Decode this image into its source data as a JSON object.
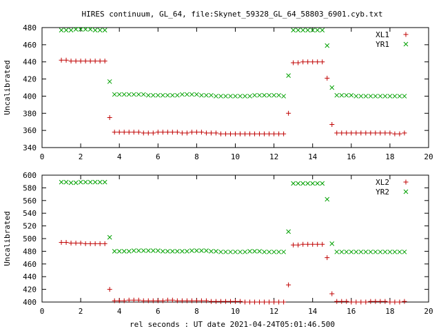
{
  "title": "HIRES continuum, GL_64, file:Skynet_59328_GL_64_58803_6901.cyb.txt",
  "xlabel": "rel seconds : UT date 2021-04-24T05:01:46.500",
  "colors": {
    "xl": "#c00000",
    "yr": "#00a000"
  },
  "chart_data": [
    {
      "type": "scatter",
      "ylabel": "Uncalibrated",
      "xlim": [
        0,
        20
      ],
      "ylim": [
        340,
        480
      ],
      "xticks": [
        "0",
        "2",
        "4",
        "6",
        "8",
        "10",
        "12",
        "14",
        "16",
        "18",
        "20"
      ],
      "yticks": [
        "340",
        "360",
        "380",
        "400",
        "420",
        "440",
        "460",
        "480"
      ],
      "legend": "top-right",
      "series": [
        {
          "name": "XL1",
          "marker": "plus",
          "x": [
            1.0,
            1.25,
            1.5,
            1.75,
            2.0,
            2.25,
            2.5,
            2.75,
            3.0,
            3.25,
            3.5,
            3.75,
            4.0,
            4.25,
            4.5,
            4.75,
            5.0,
            5.25,
            5.5,
            5.75,
            6.0,
            6.25,
            6.5,
            6.75,
            7.0,
            7.25,
            7.5,
            7.75,
            8.0,
            8.25,
            8.5,
            8.75,
            9.0,
            9.25,
            9.5,
            9.75,
            10.0,
            10.25,
            10.5,
            10.75,
            11.0,
            11.25,
            11.5,
            11.75,
            12.0,
            12.25,
            12.5,
            12.75,
            13.0,
            13.25,
            13.5,
            13.75,
            14.0,
            14.25,
            14.5,
            14.75,
            15.0,
            15.25,
            15.5,
            15.75,
            16.0,
            16.25,
            16.5,
            16.75,
            17.0,
            17.25,
            17.5,
            17.75,
            18.0,
            18.25,
            18.5,
            18.75
          ],
          "y": [
            442,
            442,
            441,
            441,
            441,
            441,
            441,
            441,
            441,
            441,
            375,
            358,
            358,
            358,
            358,
            358,
            358,
            357,
            357,
            357,
            358,
            358,
            358,
            358,
            358,
            357,
            357,
            358,
            358,
            358,
            357,
            357,
            357,
            356,
            356,
            356,
            356,
            356,
            356,
            356,
            356,
            356,
            356,
            356,
            356,
            356,
            356,
            380,
            439,
            439,
            440,
            440,
            440,
            440,
            440,
            421,
            367,
            357,
            357,
            357,
            357,
            357,
            357,
            357,
            357,
            357,
            357,
            357,
            357,
            356,
            356,
            357
          ]
        },
        {
          "name": "YR1",
          "marker": "cross",
          "x": [
            1.0,
            1.25,
            1.5,
            1.75,
            2.0,
            2.25,
            2.5,
            2.75,
            3.0,
            3.25,
            3.5,
            3.75,
            4.0,
            4.25,
            4.5,
            4.75,
            5.0,
            5.25,
            5.5,
            5.75,
            6.0,
            6.25,
            6.5,
            6.75,
            7.0,
            7.25,
            7.5,
            7.75,
            8.0,
            8.25,
            8.5,
            8.75,
            9.0,
            9.25,
            9.5,
            9.75,
            10.0,
            10.25,
            10.5,
            10.75,
            11.0,
            11.25,
            11.5,
            11.75,
            12.0,
            12.25,
            12.5,
            12.75,
            13.0,
            13.25,
            13.5,
            13.75,
            14.0,
            14.25,
            14.5,
            14.75,
            15.0,
            15.25,
            15.5,
            15.75,
            16.0,
            16.25,
            16.5,
            16.75,
            17.0,
            17.25,
            17.5,
            17.75,
            18.0,
            18.25,
            18.5,
            18.75
          ],
          "y": [
            477,
            477,
            477,
            478,
            478,
            478,
            478,
            477,
            477,
            477,
            417,
            402,
            402,
            402,
            402,
            402,
            402,
            402,
            401,
            401,
            401,
            401,
            401,
            401,
            401,
            402,
            402,
            402,
            402,
            401,
            401,
            401,
            400,
            400,
            400,
            400,
            400,
            400,
            400,
            400,
            401,
            401,
            401,
            401,
            401,
            401,
            400,
            424,
            477,
            477,
            477,
            477,
            477,
            477,
            477,
            459,
            410,
            401,
            401,
            401,
            401,
            400,
            400,
            400,
            400,
            400,
            400,
            400,
            400,
            400,
            400,
            400
          ]
        }
      ]
    },
    {
      "type": "scatter",
      "ylabel": "Uncalibrated",
      "xlim": [
        0,
        20
      ],
      "ylim": [
        400,
        600
      ],
      "xticks": [
        "0",
        "2",
        "4",
        "6",
        "8",
        "10",
        "12",
        "14",
        "16",
        "18",
        "20"
      ],
      "yticks": [
        "400",
        "420",
        "440",
        "460",
        "480",
        "500",
        "520",
        "540",
        "560",
        "580",
        "600"
      ],
      "legend": "top-right",
      "series": [
        {
          "name": "XL2",
          "marker": "plus",
          "x": [
            1.0,
            1.25,
            1.5,
            1.75,
            2.0,
            2.25,
            2.5,
            2.75,
            3.0,
            3.25,
            3.5,
            3.75,
            4.0,
            4.25,
            4.5,
            4.75,
            5.0,
            5.25,
            5.5,
            5.75,
            6.0,
            6.25,
            6.5,
            6.75,
            7.0,
            7.25,
            7.5,
            7.75,
            8.0,
            8.25,
            8.5,
            8.75,
            9.0,
            9.25,
            9.5,
            9.75,
            10.0,
            10.25,
            10.5,
            10.75,
            11.0,
            11.25,
            11.5,
            11.75,
            12.0,
            12.25,
            12.5,
            12.75,
            13.0,
            13.25,
            13.5,
            13.75,
            14.0,
            14.25,
            14.5,
            14.75,
            15.0,
            15.25,
            15.5,
            15.75,
            16.0,
            16.25,
            16.5,
            16.75,
            17.0,
            17.25,
            17.5,
            17.75,
            18.0,
            18.25,
            18.5,
            18.75
          ],
          "y": [
            494,
            494,
            493,
            493,
            493,
            492,
            492,
            492,
            492,
            492,
            420,
            402,
            402,
            402,
            403,
            403,
            403,
            402,
            402,
            402,
            402,
            402,
            403,
            403,
            402,
            402,
            402,
            402,
            402,
            402,
            402,
            401,
            401,
            401,
            401,
            401,
            401,
            401,
            400,
            400,
            400,
            400,
            400,
            400,
            400,
            400,
            400,
            427,
            490,
            490,
            491,
            491,
            491,
            491,
            491,
            470,
            413,
            401,
            401,
            401,
            400,
            400,
            400,
            400,
            401,
            401,
            401,
            401,
            400,
            400,
            400,
            401
          ]
        },
        {
          "name": "YR2",
          "marker": "cross",
          "x": [
            1.0,
            1.25,
            1.5,
            1.75,
            2.0,
            2.25,
            2.5,
            2.75,
            3.0,
            3.25,
            3.5,
            3.75,
            4.0,
            4.25,
            4.5,
            4.75,
            5.0,
            5.25,
            5.5,
            5.75,
            6.0,
            6.25,
            6.5,
            6.75,
            7.0,
            7.25,
            7.5,
            7.75,
            8.0,
            8.25,
            8.5,
            8.75,
            9.0,
            9.25,
            9.5,
            9.75,
            10.0,
            10.25,
            10.5,
            10.75,
            11.0,
            11.25,
            11.5,
            11.75,
            12.0,
            12.25,
            12.5,
            12.75,
            13.0,
            13.25,
            13.5,
            13.75,
            14.0,
            14.25,
            14.5,
            14.75,
            15.0,
            15.25,
            15.5,
            15.75,
            16.0,
            16.25,
            16.5,
            16.75,
            17.0,
            17.25,
            17.5,
            17.75,
            18.0,
            18.25,
            18.5,
            18.75
          ],
          "y": [
            589,
            589,
            588,
            588,
            589,
            589,
            589,
            589,
            589,
            589,
            502,
            480,
            480,
            480,
            480,
            481,
            481,
            481,
            481,
            481,
            481,
            480,
            480,
            480,
            480,
            480,
            480,
            481,
            481,
            481,
            481,
            480,
            480,
            479,
            479,
            479,
            479,
            479,
            479,
            480,
            480,
            480,
            479,
            479,
            479,
            479,
            479,
            511,
            587,
            587,
            587,
            587,
            587,
            587,
            587,
            562,
            492,
            479,
            479,
            479,
            479,
            479,
            479,
            479,
            479,
            479,
            479,
            479,
            479,
            479,
            479,
            479
          ]
        }
      ]
    }
  ]
}
